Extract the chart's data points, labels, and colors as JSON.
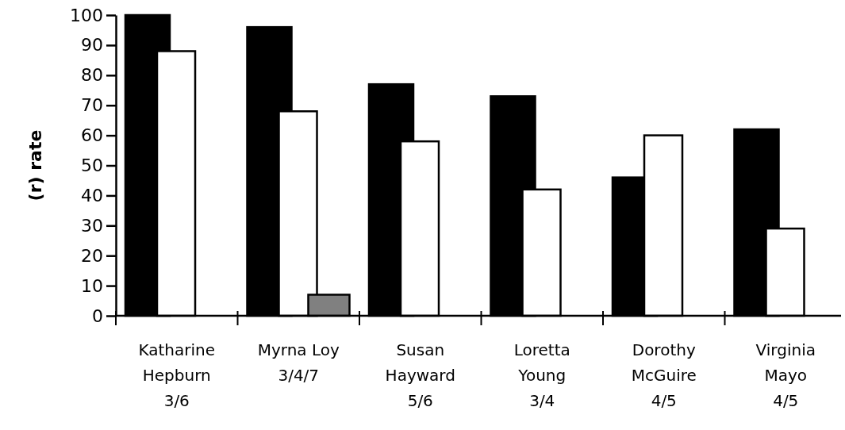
{
  "chart_data": {
    "type": "bar",
    "ylabel": "(r) rate",
    "categories": [
      "Katharine\nHepburn\n3/6",
      "Myrna Loy\n3/4/7",
      "Susan\nHayward\n5/6",
      "Loretta\nYoung\n3/4",
      "Dorothy\nMcGuire\n4/5",
      "Virginia\nMayo\n4/5"
    ],
    "series": [
      {
        "color": "#000000",
        "values": [
          100,
          96,
          77,
          73,
          46,
          62
        ]
      },
      {
        "color": "#ffffff",
        "values": [
          88,
          68,
          58,
          42,
          60,
          29
        ]
      },
      {
        "color": "#808080",
        "values": [
          null,
          7,
          null,
          null,
          null,
          null
        ]
      }
    ],
    "ylim": [
      0,
      100
    ],
    "yticks": [
      0,
      10,
      20,
      30,
      40,
      50,
      60,
      70,
      80,
      90,
      100
    ],
    "grid": false
  }
}
